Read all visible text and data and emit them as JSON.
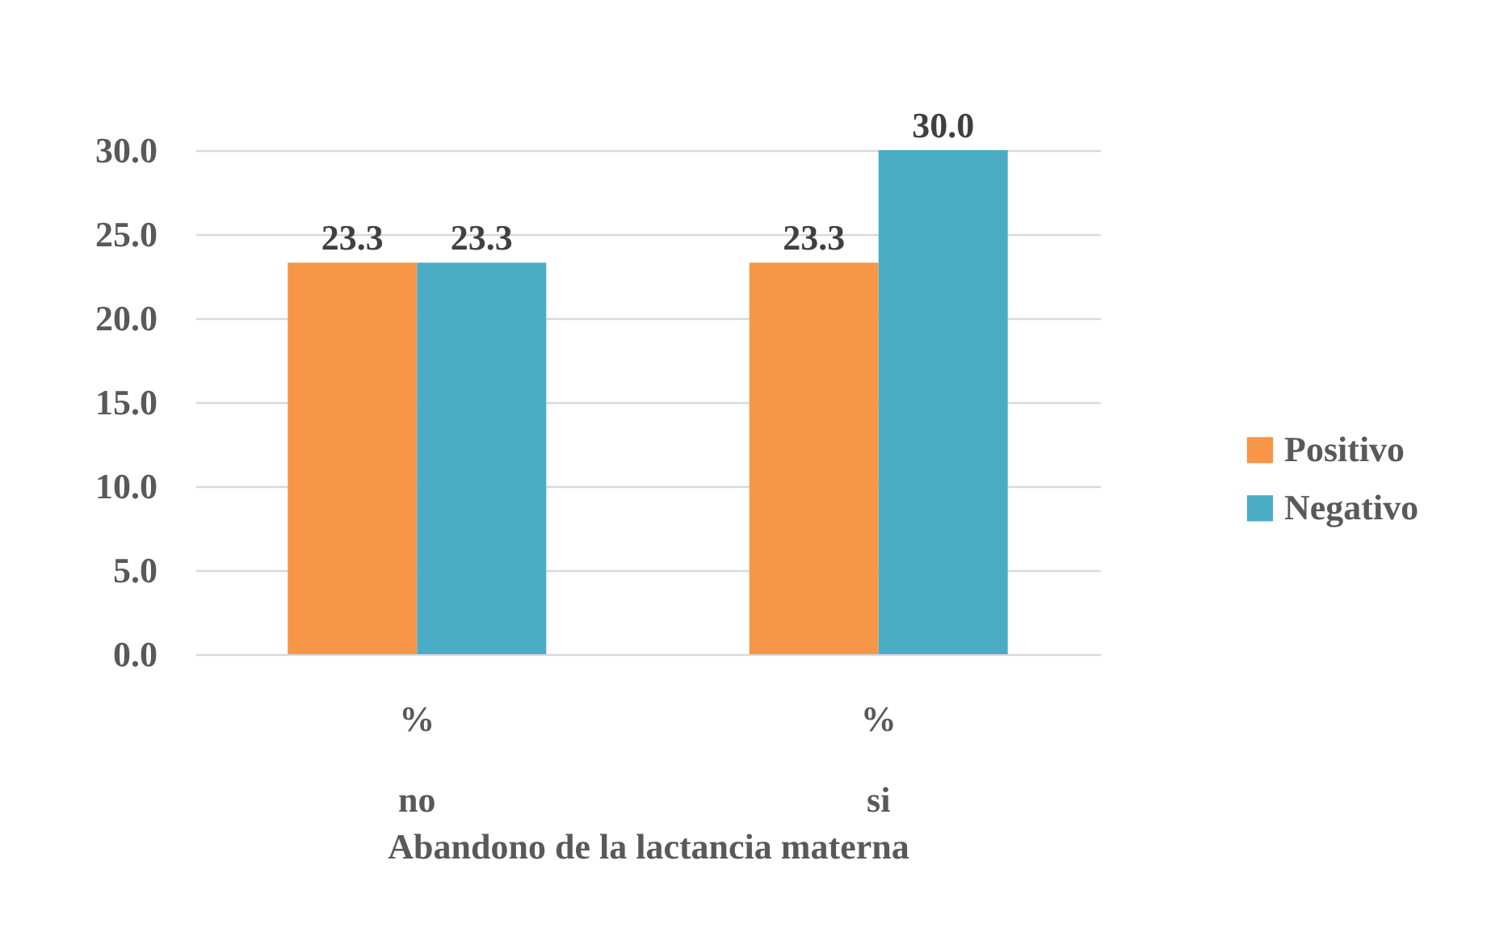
{
  "chart_data": {
    "type": "bar",
    "xlabel": "Abandono de la lactancia materna",
    "categories": [
      "%\nno",
      "%\nsi"
    ],
    "series": [
      {
        "name": "Positivo",
        "color": "#f79646",
        "values": [
          23.3,
          23.3
        ],
        "value_labels": [
          "23.3",
          "23.3"
        ]
      },
      {
        "name": "Negativo",
        "color": "#4bacc6",
        "values": [
          23.3,
          30.0
        ],
        "value_labels": [
          "23.3",
          "30.0"
        ]
      }
    ],
    "ylim": [
      0,
      30
    ],
    "yticks": [
      {
        "value": 0,
        "label": "0.0"
      },
      {
        "value": 5,
        "label": "5.0"
      },
      {
        "value": 10,
        "label": "10.0"
      },
      {
        "value": 15,
        "label": "15.0"
      },
      {
        "value": 20,
        "label": "20.0"
      },
      {
        "value": 25,
        "label": "25.0"
      },
      {
        "value": 30,
        "label": "30.0"
      }
    ],
    "grid": "y",
    "legend": "right"
  }
}
